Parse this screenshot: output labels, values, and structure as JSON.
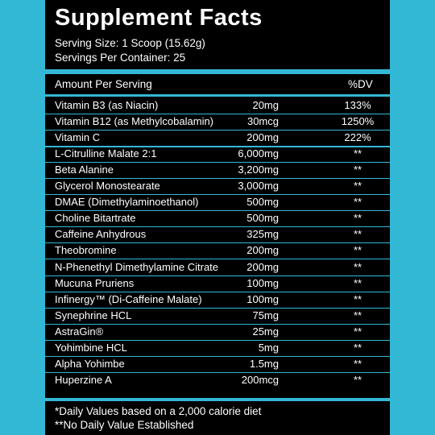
{
  "title": "Supplement Facts",
  "serving_size": "Serving Size: 1 Scoop (15.62g)",
  "servings_per_container": "Servings Per Container: 25",
  "header": {
    "amount_label": "Amount Per Serving",
    "dv_label": "%DV"
  },
  "rows": [
    {
      "name": "Vitamin B3 (as Niacin)",
      "amount": "20mg",
      "dv": "133%"
    },
    {
      "name": "Vitamin B12 (as Methylcobalamin)",
      "amount": "30mcg",
      "dv": "1250%"
    },
    {
      "name": "Vitamin C",
      "amount": "200mg",
      "dv": "222%"
    },
    {
      "name": "L-Citrulline Malate 2:1",
      "amount": "6,000mg",
      "dv": "**"
    },
    {
      "name": "Beta Alanine",
      "amount": "3,200mg",
      "dv": "**"
    },
    {
      "name": "Glycerol Monostearate",
      "amount": "3,000mg",
      "dv": "**"
    },
    {
      "name": "DMAE (Dimethylaminoethanol)",
      "amount": "500mg",
      "dv": "**"
    },
    {
      "name": "Choline Bitartrate",
      "amount": "500mg",
      "dv": "**"
    },
    {
      "name": "Caffeine Anhydrous",
      "amount": "325mg",
      "dv": "**"
    },
    {
      "name": "Theobromine",
      "amount": "200mg",
      "dv": "**"
    },
    {
      "name": "N-Phenethyl Dimethylamine Citrate",
      "amount": "200mg",
      "dv": "**"
    },
    {
      "name": "Mucuna Pruriens",
      "amount": "100mg",
      "dv": "**"
    },
    {
      "name": "Infinergy™ (Di-Caffeine Malate)",
      "amount": "100mg",
      "dv": "**"
    },
    {
      "name": "Synephrine HCL",
      "amount": "75mg",
      "dv": "**"
    },
    {
      "name": "AstraGin®",
      "amount": "25mg",
      "dv": "**"
    },
    {
      "name": "Yohimbine HCL",
      "amount": "5mg",
      "dv": "**"
    },
    {
      "name": "Alpha Yohimbe",
      "amount": "1.5mg",
      "dv": "**"
    },
    {
      "name": "Huperzine A",
      "amount": "200mcg",
      "dv": "**"
    }
  ],
  "footnotes": [
    "*Daily Values based on a 2,000 calorie diet",
    "**No Daily Value Established"
  ],
  "colors": {
    "accent": "#32b8d4",
    "label_background": "#000000",
    "text": "#ffffff"
  }
}
